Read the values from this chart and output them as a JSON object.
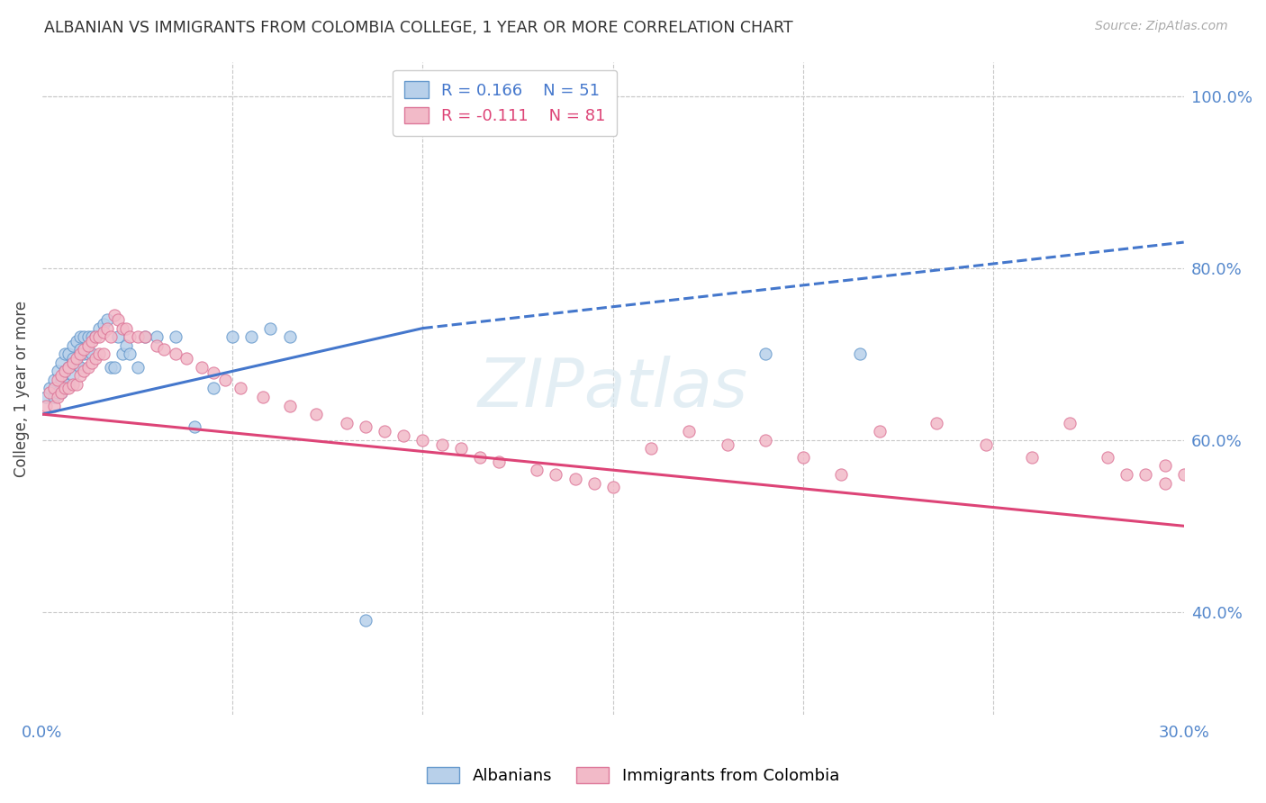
{
  "title": "ALBANIAN VS IMMIGRANTS FROM COLOMBIA COLLEGE, 1 YEAR OR MORE CORRELATION CHART",
  "source": "Source: ZipAtlas.com",
  "ylabel": "College, 1 year or more",
  "xlim": [
    0.0,
    0.3
  ],
  "ylim": [
    0.28,
    1.04
  ],
  "xticks": [
    0.0,
    0.05,
    0.1,
    0.15,
    0.2,
    0.25,
    0.3
  ],
  "xticklabels": [
    "0.0%",
    "",
    "",
    "",
    "",
    "",
    "30.0%"
  ],
  "yticks_right": [
    0.4,
    0.6,
    0.8,
    1.0
  ],
  "ytick_labels_right": [
    "40.0%",
    "60.0%",
    "80.0%",
    "100.0%"
  ],
  "grid_color": "#c8c8c8",
  "background_color": "#ffffff",
  "albanians_color": "#b8d0ea",
  "albanians_edge": "#6699cc",
  "colombia_color": "#f2bac8",
  "colombia_edge": "#dd7799",
  "blue_line_color": "#4477cc",
  "pink_line_color": "#dd4477",
  "watermark": "ZIPatlas",
  "legend_R1": "R = 0.166",
  "legend_N1": "N = 51",
  "legend_R2": "R = -0.111",
  "legend_N2": "N = 81",
  "blue_line_x0": 0.0,
  "blue_line_y0": 0.63,
  "blue_line_x1": 0.1,
  "blue_line_y1": 0.73,
  "blue_line_dash_x0": 0.1,
  "blue_line_dash_y0": 0.73,
  "blue_line_dash_x1": 0.3,
  "blue_line_dash_y1": 0.83,
  "pink_line_x0": 0.0,
  "pink_line_y0": 0.63,
  "pink_line_x1": 0.15,
  "pink_line_y1": 0.565,
  "albanians_x": [
    0.001,
    0.002,
    0.003,
    0.003,
    0.004,
    0.004,
    0.005,
    0.005,
    0.005,
    0.006,
    0.006,
    0.007,
    0.007,
    0.007,
    0.008,
    0.008,
    0.008,
    0.009,
    0.009,
    0.01,
    0.01,
    0.01,
    0.011,
    0.011,
    0.012,
    0.012,
    0.013,
    0.013,
    0.014,
    0.015,
    0.016,
    0.017,
    0.018,
    0.019,
    0.02,
    0.021,
    0.022,
    0.023,
    0.025,
    0.027,
    0.03,
    0.035,
    0.04,
    0.045,
    0.05,
    0.055,
    0.06,
    0.065,
    0.085,
    0.19,
    0.215
  ],
  "albanians_y": [
    0.65,
    0.66,
    0.67,
    0.65,
    0.68,
    0.655,
    0.69,
    0.67,
    0.655,
    0.7,
    0.68,
    0.7,
    0.685,
    0.665,
    0.71,
    0.695,
    0.675,
    0.715,
    0.69,
    0.72,
    0.705,
    0.685,
    0.72,
    0.7,
    0.72,
    0.7,
    0.72,
    0.7,
    0.72,
    0.73,
    0.735,
    0.74,
    0.685,
    0.685,
    0.72,
    0.7,
    0.71,
    0.7,
    0.685,
    0.72,
    0.72,
    0.72,
    0.615,
    0.66,
    0.72,
    0.72,
    0.73,
    0.72,
    0.39,
    0.7,
    0.7
  ],
  "colombia_x": [
    0.001,
    0.002,
    0.003,
    0.003,
    0.004,
    0.004,
    0.005,
    0.005,
    0.006,
    0.006,
    0.007,
    0.007,
    0.008,
    0.008,
    0.009,
    0.009,
    0.01,
    0.01,
    0.011,
    0.011,
    0.012,
    0.012,
    0.013,
    0.013,
    0.014,
    0.014,
    0.015,
    0.015,
    0.016,
    0.016,
    0.017,
    0.018,
    0.019,
    0.02,
    0.021,
    0.022,
    0.023,
    0.025,
    0.027,
    0.03,
    0.032,
    0.035,
    0.038,
    0.042,
    0.045,
    0.048,
    0.052,
    0.058,
    0.065,
    0.072,
    0.08,
    0.085,
    0.09,
    0.095,
    0.1,
    0.105,
    0.11,
    0.115,
    0.12,
    0.13,
    0.135,
    0.14,
    0.145,
    0.15,
    0.16,
    0.17,
    0.18,
    0.19,
    0.2,
    0.21,
    0.22,
    0.235,
    0.248,
    0.26,
    0.27,
    0.28,
    0.285,
    0.29,
    0.295,
    0.295,
    0.3
  ],
  "colombia_y": [
    0.64,
    0.655,
    0.66,
    0.64,
    0.67,
    0.65,
    0.675,
    0.655,
    0.68,
    0.66,
    0.685,
    0.66,
    0.69,
    0.665,
    0.695,
    0.665,
    0.7,
    0.675,
    0.705,
    0.68,
    0.71,
    0.685,
    0.715,
    0.69,
    0.72,
    0.695,
    0.72,
    0.7,
    0.725,
    0.7,
    0.73,
    0.72,
    0.745,
    0.74,
    0.73,
    0.73,
    0.72,
    0.72,
    0.72,
    0.71,
    0.705,
    0.7,
    0.695,
    0.685,
    0.678,
    0.67,
    0.66,
    0.65,
    0.64,
    0.63,
    0.62,
    0.615,
    0.61,
    0.605,
    0.6,
    0.595,
    0.59,
    0.58,
    0.575,
    0.565,
    0.56,
    0.555,
    0.55,
    0.545,
    0.59,
    0.61,
    0.595,
    0.6,
    0.58,
    0.56,
    0.61,
    0.62,
    0.595,
    0.58,
    0.62,
    0.58,
    0.56,
    0.56,
    0.55,
    0.57,
    0.56
  ]
}
